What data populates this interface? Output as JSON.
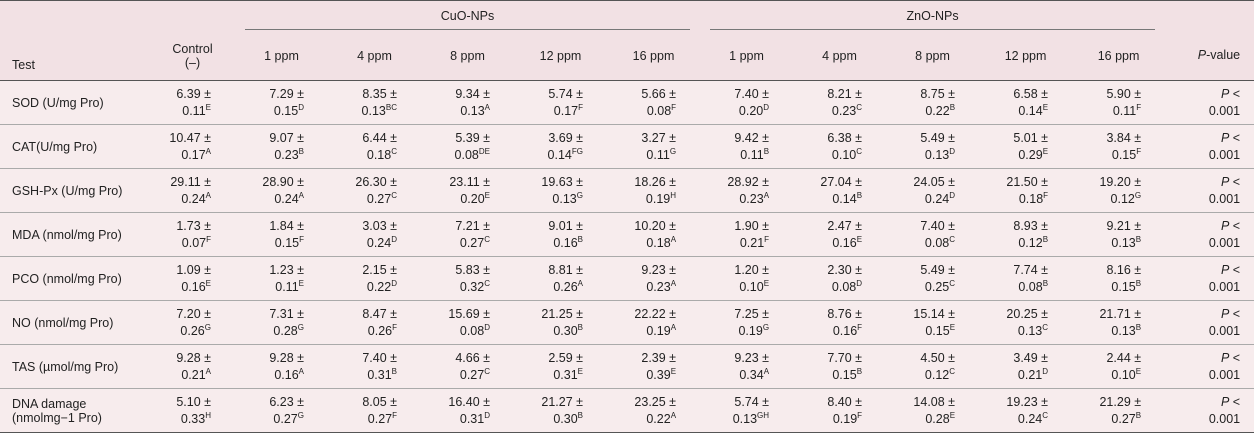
{
  "header": {
    "test": "Test",
    "control": [
      "Control",
      "(–)"
    ],
    "groups": [
      {
        "name": "CuO-NPs",
        "concentrations": [
          "1 ppm",
          "4 ppm",
          "8 ppm",
          "12 ppm",
          "16 ppm"
        ]
      },
      {
        "name": "ZnO-NPs",
        "concentrations": [
          "1 ppm",
          "4 ppm",
          "8 ppm",
          "12 ppm",
          "16 ppm"
        ]
      }
    ],
    "p_value": {
      "symbol": "P",
      "text": "-value"
    }
  },
  "rows": [
    {
      "test": [
        "SOD (U/mg Pro)"
      ],
      "control": [
        "6.39 ±",
        "0.11",
        "E"
      ],
      "cuo": [
        [
          "7.29 ±",
          "0.15",
          "D"
        ],
        [
          "8.35 ±",
          "0.13",
          "BC"
        ],
        [
          "9.34 ±",
          "0.13",
          "A"
        ],
        [
          "5.74 ±",
          "0.17",
          "F"
        ],
        [
          "5.66 ±",
          "0.08",
          "F"
        ]
      ],
      "zno": [
        [
          "7.40 ±",
          "0.20",
          "D"
        ],
        [
          "8.21 ±",
          "0.23",
          "C"
        ],
        [
          "8.75 ±",
          "0.22",
          "B"
        ],
        [
          "6.58 ±",
          "0.14",
          "E"
        ],
        [
          "5.90 ±",
          "0.11",
          "F"
        ]
      ],
      "p": [
        "P",
        "<",
        "0.001"
      ]
    },
    {
      "test": [
        "CAT(U/mg Pro)"
      ],
      "control": [
        "10.47 ±",
        "0.17",
        "A"
      ],
      "cuo": [
        [
          "9.07 ±",
          "0.23",
          "B"
        ],
        [
          "6.44 ±",
          "0.18",
          "C"
        ],
        [
          "5.39 ±",
          "0.08",
          "DE"
        ],
        [
          "3.69 ±",
          "0.14",
          "FG"
        ],
        [
          "3.27 ±",
          "0.11",
          "G"
        ]
      ],
      "zno": [
        [
          "9.42 ±",
          "0.11",
          "B"
        ],
        [
          "6.38 ±",
          "0.10",
          "C"
        ],
        [
          "5.49 ±",
          "0.13",
          "D"
        ],
        [
          "5.01 ±",
          "0.29",
          "E"
        ],
        [
          "3.84 ±",
          "0.15",
          "F"
        ]
      ],
      "p": [
        "P",
        "<",
        "0.001"
      ]
    },
    {
      "test": [
        "GSH-Px (U/mg Pro)"
      ],
      "control": [
        "29.11 ±",
        "0.24",
        "A"
      ],
      "cuo": [
        [
          "28.90 ±",
          "0.24",
          "A"
        ],
        [
          "26.30 ±",
          "0.27",
          "C"
        ],
        [
          "23.11 ±",
          "0.20",
          "E"
        ],
        [
          "19.63 ±",
          "0.13",
          "G"
        ],
        [
          "18.26 ±",
          "0.19",
          "H"
        ]
      ],
      "zno": [
        [
          "28.92 ±",
          "0.23",
          "A"
        ],
        [
          "27.04 ±",
          "0.14",
          "B"
        ],
        [
          "24.05 ±",
          "0.24",
          "D"
        ],
        [
          "21.50 ±",
          "0.18",
          "F"
        ],
        [
          "19.20 ±",
          "0.12",
          "G"
        ]
      ],
      "p": [
        "P",
        "<",
        "0.001"
      ]
    },
    {
      "test": [
        "MDA (nmol/mg Pro)"
      ],
      "control": [
        "1.73 ±",
        "0.07",
        "F"
      ],
      "cuo": [
        [
          "1.84 ±",
          "0.15",
          "F"
        ],
        [
          "3.03 ±",
          "0.24",
          "D"
        ],
        [
          "7.21 ±",
          "0.27",
          "C"
        ],
        [
          "9.01 ±",
          "0.16",
          "B"
        ],
        [
          "10.20 ±",
          "0.18",
          "A"
        ]
      ],
      "zno": [
        [
          "1.90 ±",
          "0.21",
          "F"
        ],
        [
          "2.47 ±",
          "0.16",
          "E"
        ],
        [
          "7.40 ±",
          "0.08",
          "C"
        ],
        [
          "8.93 ±",
          "0.12",
          "B"
        ],
        [
          "9.21 ±",
          "0.13",
          "B"
        ]
      ],
      "p": [
        "P",
        "<",
        "0.001"
      ]
    },
    {
      "test": [
        "PCO (nmol/mg Pro)"
      ],
      "control": [
        "1.09 ±",
        "0.16",
        "E"
      ],
      "cuo": [
        [
          "1.23 ±",
          "0.11",
          "E"
        ],
        [
          "2.15 ±",
          "0.22",
          "D"
        ],
        [
          "5.83 ±",
          "0.32",
          "C"
        ],
        [
          "8.81 ±",
          "0.26",
          "A"
        ],
        [
          "9.23 ±",
          "0.23",
          "A"
        ]
      ],
      "zno": [
        [
          "1.20 ±",
          "0.10",
          "E"
        ],
        [
          "2.30 ±",
          "0.08",
          "D"
        ],
        [
          "5.49 ±",
          "0.25",
          "C"
        ],
        [
          "7.74 ±",
          "0.08",
          "B"
        ],
        [
          "8.16 ±",
          "0.15",
          "B"
        ]
      ],
      "p": [
        "P",
        "<",
        "0.001"
      ]
    },
    {
      "test": [
        "NO (nmol/mg Pro)"
      ],
      "control": [
        "7.20 ±",
        "0.26",
        "G"
      ],
      "cuo": [
        [
          "7.31 ±",
          "0.28",
          "G"
        ],
        [
          "8.47 ±",
          "0.26",
          "F"
        ],
        [
          "15.69 ±",
          "0.08",
          "D"
        ],
        [
          "21.25 ±",
          "0.30",
          "B"
        ],
        [
          "22.22 ±",
          "0.19",
          "A"
        ]
      ],
      "zno": [
        [
          "7.25 ±",
          "0.19",
          "G"
        ],
        [
          "8.76 ±",
          "0.16",
          "F"
        ],
        [
          "15.14 ±",
          "0.15",
          "E"
        ],
        [
          "20.25 ±",
          "0.13",
          "C"
        ],
        [
          "21.71 ±",
          "0.13",
          "B"
        ]
      ],
      "p": [
        "P",
        "<",
        "0.001"
      ]
    },
    {
      "test": [
        "TAS (µmol/mg Pro)"
      ],
      "control": [
        "9.28 ±",
        "0.21",
        "A"
      ],
      "cuo": [
        [
          "9.28 ±",
          "0.16",
          "A"
        ],
        [
          "7.40 ±",
          "0.31",
          "B"
        ],
        [
          "4.66 ±",
          "0.27",
          "C"
        ],
        [
          "2.59 ±",
          "0.31",
          "E"
        ],
        [
          "2.39 ±",
          "0.39",
          "E"
        ]
      ],
      "zno": [
        [
          "9.23 ±",
          "0.34",
          "A"
        ],
        [
          "7.70 ±",
          "0.15",
          "B"
        ],
        [
          "4.50 ±",
          "0.12",
          "C"
        ],
        [
          "3.49 ±",
          "0.21",
          "D"
        ],
        [
          "2.44 ±",
          "0.10",
          "E"
        ]
      ],
      "p": [
        "P",
        "<",
        "0.001"
      ]
    },
    {
      "test": [
        "DNA damage",
        "(nmolmg−1 Pro)"
      ],
      "control": [
        "5.10 ±",
        "0.33",
        "H"
      ],
      "cuo": [
        [
          "6.23 ±",
          "0.27",
          "G"
        ],
        [
          "8.05 ±",
          "0.27",
          "F"
        ],
        [
          "16.40 ±",
          "0.31",
          "D"
        ],
        [
          "21.27 ±",
          "0.30",
          "B"
        ],
        [
          "23.25 ±",
          "0.22",
          "A"
        ]
      ],
      "zno": [
        [
          "5.74 ±",
          "0.13",
          "GH"
        ],
        [
          "8.40 ±",
          "0.19",
          "F"
        ],
        [
          "14.08 ±",
          "0.28",
          "E"
        ],
        [
          "19.23 ±",
          "0.24",
          "C"
        ],
        [
          "21.29 ±",
          "0.27",
          "B"
        ]
      ],
      "p": [
        "P",
        "<",
        "0.001"
      ]
    }
  ]
}
